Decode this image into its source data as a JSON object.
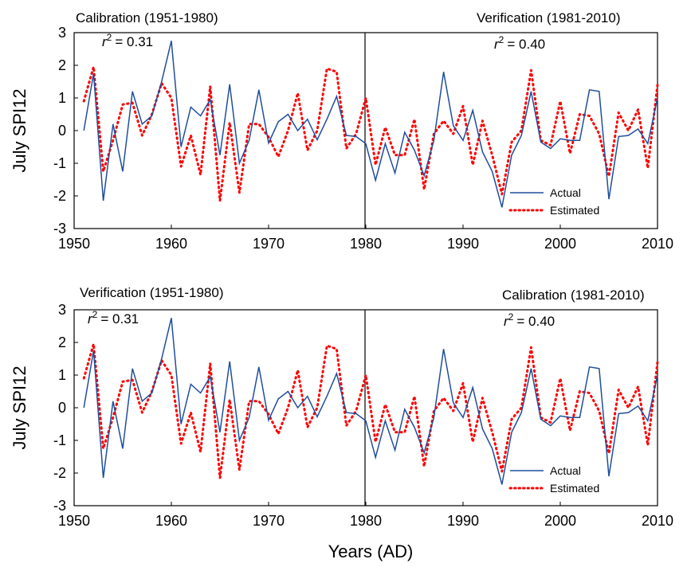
{
  "chart_data": [
    {
      "type": "line",
      "ylabel": "July SPI12",
      "xlabel": "",
      "xlim": [
        1950,
        2010
      ],
      "ylim": [
        -3,
        3
      ],
      "xticks": [
        "1950",
        "1960",
        "1970",
        "1980",
        "1990",
        "2000",
        "2010"
      ],
      "yticks": [
        "3",
        "2",
        "1",
        "0",
        "-1",
        "-2",
        "-3"
      ],
      "divider_year": 1980,
      "left_period": "Calibration (1951-1980)",
      "right_period": "Verification (1981-2010)",
      "left_r2_value": "= 0.31",
      "right_r2_value": "= 0.40",
      "legend": {
        "position": "lower-right"
      },
      "colors": {
        "actual": "#1f4e9c",
        "estimated": "#ff0000"
      },
      "series": [
        {
          "name": "Actual",
          "style": "solid",
          "x": [
            1951,
            1952,
            1953,
            1954,
            1955,
            1956,
            1957,
            1958,
            1959,
            1960,
            1961,
            1962,
            1963,
            1964,
            1965,
            1966,
            1967,
            1968,
            1969,
            1970,
            1971,
            1972,
            1973,
            1974,
            1975,
            1976,
            1977,
            1978,
            1979,
            1980,
            1981,
            1982,
            1983,
            1984,
            1985,
            1986,
            1987,
            1988,
            1989,
            1990,
            1991,
            1992,
            1993,
            1994,
            1995,
            1996,
            1997,
            1998,
            1999,
            2000,
            2001,
            2002,
            2003,
            2004,
            2005,
            2006,
            2007,
            2008,
            2009,
            2010
          ],
          "values": [
            0.0,
            1.75,
            -2.15,
            0.2,
            -1.25,
            1.2,
            0.2,
            0.45,
            1.5,
            2.75,
            -0.5,
            0.72,
            0.45,
            0.95,
            -0.75,
            1.42,
            -1.0,
            -0.3,
            1.25,
            -0.38,
            0.27,
            0.5,
            0.0,
            0.35,
            -0.28,
            0.35,
            1.05,
            -0.15,
            -0.18,
            -0.4,
            -1.52,
            -0.4,
            -1.3,
            -0.05,
            -0.6,
            -1.38,
            -0.3,
            1.8,
            0.15,
            -0.3,
            0.62,
            -0.65,
            -1.25,
            -2.35,
            -0.75,
            -0.15,
            1.2,
            -0.35,
            -0.55,
            -0.25,
            -0.3,
            -0.3,
            1.25,
            1.2,
            -2.1,
            -0.18,
            -0.15,
            0.05,
            -0.4,
            1.0
          ]
        },
        {
          "name": "Estimated",
          "style": "dotted",
          "x": [
            1951,
            1952,
            1953,
            1954,
            1955,
            1956,
            1957,
            1958,
            1959,
            1960,
            1961,
            1962,
            1963,
            1964,
            1965,
            1966,
            1967,
            1968,
            1969,
            1970,
            1971,
            1972,
            1973,
            1974,
            1975,
            1976,
            1977,
            1978,
            1979,
            1980,
            1981,
            1982,
            1983,
            1984,
            1985,
            1986,
            1987,
            1988,
            1989,
            1990,
            1991,
            1992,
            1993,
            1994,
            1995,
            1996,
            1997,
            1998,
            1999,
            2000,
            2001,
            2002,
            2003,
            2004,
            2005,
            2006,
            2007,
            2008,
            2009,
            2010
          ],
          "values": [
            0.9,
            1.95,
            -1.25,
            -0.3,
            0.8,
            0.85,
            -0.15,
            0.5,
            1.45,
            1.0,
            -1.1,
            -0.15,
            -1.35,
            1.35,
            -2.15,
            0.25,
            -1.9,
            0.2,
            0.2,
            -0.2,
            -0.8,
            0.0,
            1.15,
            -0.6,
            0.0,
            1.9,
            1.8,
            -0.55,
            -0.1,
            1.0,
            -1.05,
            0.1,
            -0.75,
            -0.75,
            0.35,
            -1.8,
            -0.1,
            0.3,
            -0.1,
            0.75,
            -1.05,
            0.3,
            -0.75,
            -1.95,
            -0.35,
            0.0,
            1.85,
            -0.3,
            -0.45,
            0.9,
            -0.7,
            0.5,
            0.45,
            -0.1,
            -1.4,
            0.55,
            0.0,
            0.65,
            -1.15,
            1.4
          ]
        }
      ]
    },
    {
      "type": "line",
      "ylabel": "July SPI12",
      "xlabel": "Years (AD)",
      "xlim": [
        1950,
        2010
      ],
      "ylim": [
        -3,
        3
      ],
      "xticks": [
        "1950",
        "1960",
        "1970",
        "1980",
        "1990",
        "2000",
        "2010"
      ],
      "yticks": [
        "3",
        "2",
        "1",
        "0",
        "-1",
        "-2",
        "-3"
      ],
      "divider_year": 1980,
      "left_period": "Verification (1951-1980)",
      "right_period": "Calibration (1981-2010)",
      "left_r2_value": "= 0.31",
      "right_r2_value": "= 0.40",
      "legend": {
        "position": "lower-right"
      },
      "colors": {
        "actual": "#1f4e9c",
        "estimated": "#ff0000"
      },
      "series": [
        {
          "name": "Actual",
          "style": "solid",
          "x": [
            1951,
            1952,
            1953,
            1954,
            1955,
            1956,
            1957,
            1958,
            1959,
            1960,
            1961,
            1962,
            1963,
            1964,
            1965,
            1966,
            1967,
            1968,
            1969,
            1970,
            1971,
            1972,
            1973,
            1974,
            1975,
            1976,
            1977,
            1978,
            1979,
            1980,
            1981,
            1982,
            1983,
            1984,
            1985,
            1986,
            1987,
            1988,
            1989,
            1990,
            1991,
            1992,
            1993,
            1994,
            1995,
            1996,
            1997,
            1998,
            1999,
            2000,
            2001,
            2002,
            2003,
            2004,
            2005,
            2006,
            2007,
            2008,
            2009,
            2010
          ],
          "values": [
            0.0,
            1.75,
            -2.15,
            0.2,
            -1.25,
            1.2,
            0.2,
            0.45,
            1.5,
            2.75,
            -0.5,
            0.72,
            0.45,
            0.95,
            -0.75,
            1.42,
            -1.0,
            -0.3,
            1.25,
            -0.38,
            0.27,
            0.5,
            0.0,
            0.35,
            -0.28,
            0.35,
            1.05,
            -0.15,
            -0.18,
            -0.4,
            -1.52,
            -0.4,
            -1.3,
            -0.05,
            -0.6,
            -1.38,
            -0.3,
            1.8,
            0.15,
            -0.3,
            0.62,
            -0.65,
            -1.25,
            -2.35,
            -0.75,
            -0.15,
            1.2,
            -0.35,
            -0.55,
            -0.25,
            -0.3,
            -0.3,
            1.25,
            1.2,
            -2.1,
            -0.18,
            -0.15,
            0.05,
            -0.4,
            1.0
          ]
        },
        {
          "name": "Estimated",
          "style": "dotted",
          "x": [
            1951,
            1952,
            1953,
            1954,
            1955,
            1956,
            1957,
            1958,
            1959,
            1960,
            1961,
            1962,
            1963,
            1964,
            1965,
            1966,
            1967,
            1968,
            1969,
            1970,
            1971,
            1972,
            1973,
            1974,
            1975,
            1976,
            1977,
            1978,
            1979,
            1980,
            1981,
            1982,
            1983,
            1984,
            1985,
            1986,
            1987,
            1988,
            1989,
            1990,
            1991,
            1992,
            1993,
            1994,
            1995,
            1996,
            1997,
            1998,
            1999,
            2000,
            2001,
            2002,
            2003,
            2004,
            2005,
            2006,
            2007,
            2008,
            2009,
            2010
          ],
          "values": [
            0.9,
            1.95,
            -1.25,
            -0.3,
            0.8,
            0.85,
            -0.15,
            0.5,
            1.45,
            1.0,
            -1.1,
            -0.15,
            -1.35,
            1.35,
            -2.15,
            0.25,
            -1.9,
            0.2,
            0.2,
            -0.2,
            -0.8,
            0.0,
            1.15,
            -0.6,
            0.0,
            1.9,
            1.8,
            -0.55,
            -0.1,
            1.0,
            -1.05,
            0.1,
            -0.75,
            -0.75,
            0.35,
            -1.8,
            -0.1,
            0.3,
            -0.1,
            0.75,
            -1.05,
            0.3,
            -0.75,
            -1.95,
            -0.35,
            0.0,
            1.85,
            -0.3,
            -0.45,
            0.9,
            -0.7,
            0.5,
            0.45,
            -0.1,
            -1.4,
            0.55,
            0.0,
            0.65,
            -1.15,
            1.4
          ]
        }
      ]
    }
  ]
}
